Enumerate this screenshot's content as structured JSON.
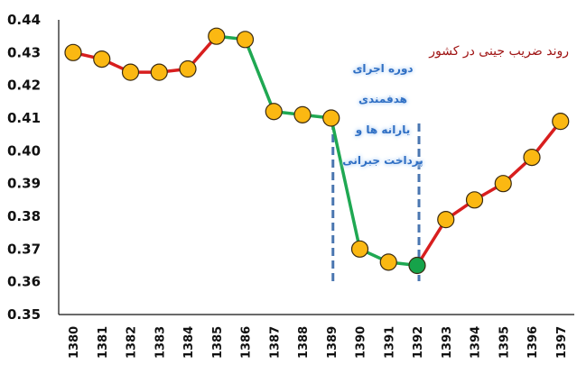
{
  "chart_data": {
    "type": "line",
    "title": "روند ضریب جینی در کشور",
    "xlabel": "",
    "ylabel": "",
    "ylim": [
      0.35,
      0.44
    ],
    "yticks": [
      "0.35",
      "0.36",
      "0.37",
      "0.38",
      "0.39",
      "0.40",
      "0.41",
      "0.42",
      "0.43",
      "0.44"
    ],
    "grid": false,
    "legend": null,
    "categories": [
      "1380",
      "1381",
      "1382",
      "1383",
      "1384",
      "1385",
      "1386",
      "1387",
      "1388",
      "1389",
      "1390",
      "1391",
      "1392",
      "1393",
      "1394",
      "1395",
      "1396",
      "1397"
    ],
    "values": [
      0.43,
      0.428,
      0.424,
      0.424,
      0.425,
      0.435,
      0.434,
      0.412,
      0.411,
      0.41,
      0.37,
      0.366,
      0.365,
      0.379,
      0.385,
      0.39,
      0.398,
      0.409
    ],
    "segments": [
      {
        "from": "1380",
        "to": "1385",
        "color": "#d81e1e"
      },
      {
        "from": "1385",
        "to": "1392",
        "color": "#1fa852"
      },
      {
        "from": "1392",
        "to": "1397",
        "color": "#d81e1e"
      }
    ],
    "marker_color": "#fbb812",
    "highlight_point": {
      "category": "1392",
      "color": "#16a34a"
    },
    "annotation": {
      "lines": [
        "دوره اجرای",
        "هدفمندی",
        "یارانه ها و",
        "پرداخت جبرانی"
      ],
      "color": "#2f6fc4",
      "range": [
        "1389",
        "1392"
      ]
    },
    "vertical_lines": [
      {
        "at": "1389",
        "style": "dashed",
        "color": "#4a76b0"
      },
      {
        "at": "1392",
        "style": "dashed",
        "color": "#4a76b0"
      }
    ]
  }
}
